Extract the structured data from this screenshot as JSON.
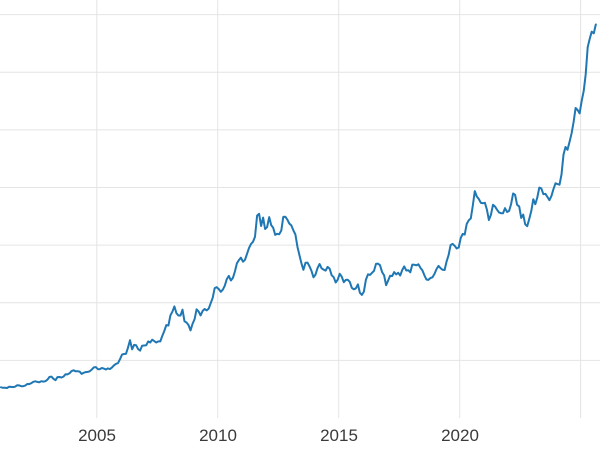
{
  "chart_data": {
    "type": "line",
    "title": "",
    "xlabel": "",
    "ylabel": "",
    "x_tick_labels": [
      "2005",
      "2010",
      "2015",
      "2020"
    ],
    "x_ticks": [
      2005,
      2010,
      2015,
      2020
    ],
    "x_gridlines": [
      2005,
      2010,
      2015,
      2020,
      2025
    ],
    "y_gridlines": [
      500,
      1000,
      1500,
      2000,
      2500,
      3000,
      3500
    ],
    "xlim": [
      2001,
      2025.8
    ],
    "ylim": [
      0,
      3540
    ],
    "grid_on": true,
    "legend": "none",
    "line_color": "#1f77b4",
    "grid_color": "#e4e4e4",
    "tick_label_color": "#3a3a3a",
    "x_start": 2001.042,
    "x_step": 0.0833333,
    "values": [
      266,
      262,
      263,
      260,
      272,
      270,
      268,
      272,
      284,
      283,
      276,
      276,
      281,
      295,
      294,
      302,
      314,
      318,
      313,
      310,
      319,
      316,
      319,
      332,
      356,
      359,
      340,
      328,
      355,
      356,
      351,
      359,
      379,
      378,
      389,
      407,
      414,
      405,
      406,
      403,
      383,
      392,
      398,
      400,
      405,
      420,
      439,
      442,
      424,
      423,
      434,
      429,
      421,
      430,
      424,
      437,
      456,
      469,
      476,
      510,
      550,
      555,
      557,
      611,
      675,
      596,
      634,
      632,
      598,
      585,
      627,
      629,
      631,
      665,
      655,
      679,
      667,
      655,
      665,
      665,
      712,
      755,
      806,
      803,
      890,
      922,
      968,
      910,
      889,
      889,
      940,
      839,
      829,
      807,
      760,
      816,
      858,
      943,
      924,
      890,
      928,
      946,
      934,
      949,
      996,
      1043,
      1127,
      1135,
      1118,
      1095,
      1113,
      1148,
      1205,
      1233,
      1193,
      1216,
      1271,
      1342,
      1370,
      1391,
      1356,
      1373,
      1424,
      1474,
      1511,
      1529,
      1573,
      1756,
      1772,
      1666,
      1739,
      1640,
      1656,
      1743,
      1674,
      1650,
      1589,
      1598,
      1594,
      1627,
      1745,
      1747,
      1721,
      1688,
      1671,
      1628,
      1592,
      1487,
      1414,
      1343,
      1286,
      1347,
      1348,
      1316,
      1276,
      1221,
      1244,
      1300,
      1336,
      1299,
      1288,
      1279,
      1311,
      1296,
      1238,
      1222,
      1176,
      1200,
      1251,
      1227,
      1178,
      1198,
      1199,
      1181,
      1130,
      1117,
      1125,
      1159,
      1086,
      1068,
      1097,
      1200,
      1246,
      1242,
      1260,
      1276,
      1337,
      1340,
      1326,
      1266,
      1238,
      1152,
      1192,
      1234,
      1231,
      1266,
      1246,
      1260,
      1236,
      1283,
      1315,
      1280,
      1282,
      1264,
      1331,
      1330,
      1325,
      1334,
      1303,
      1281,
      1238,
      1202,
      1198,
      1215,
      1221,
      1250,
      1292,
      1320,
      1301,
      1286,
      1284,
      1359,
      1413,
      1500,
      1511,
      1495,
      1471,
      1479,
      1561,
      1597,
      1591,
      1683,
      1716,
      1732,
      1843,
      1969,
      1922,
      1900,
      1866,
      1864,
      1867,
      1808,
      1718,
      1762,
      1850,
      1835,
      1807,
      1784,
      1777,
      1777,
      1820,
      1787,
      1797,
      1856,
      1948,
      1937,
      1850,
      1836,
      1736,
      1765,
      1681,
      1664,
      1725,
      1797,
      1898,
      1855,
      1913,
      1999,
      1992,
      1942,
      1945,
      1918,
      1890,
      1925,
      1984,
      2036,
      2029,
      2024,
      2113,
      2285,
      2351,
      2327,
      2398,
      2470,
      2568,
      2690,
      2672,
      2643,
      2752,
      2836,
      2983,
      3218,
      3289,
      3352,
      3338,
      3414
    ]
  }
}
